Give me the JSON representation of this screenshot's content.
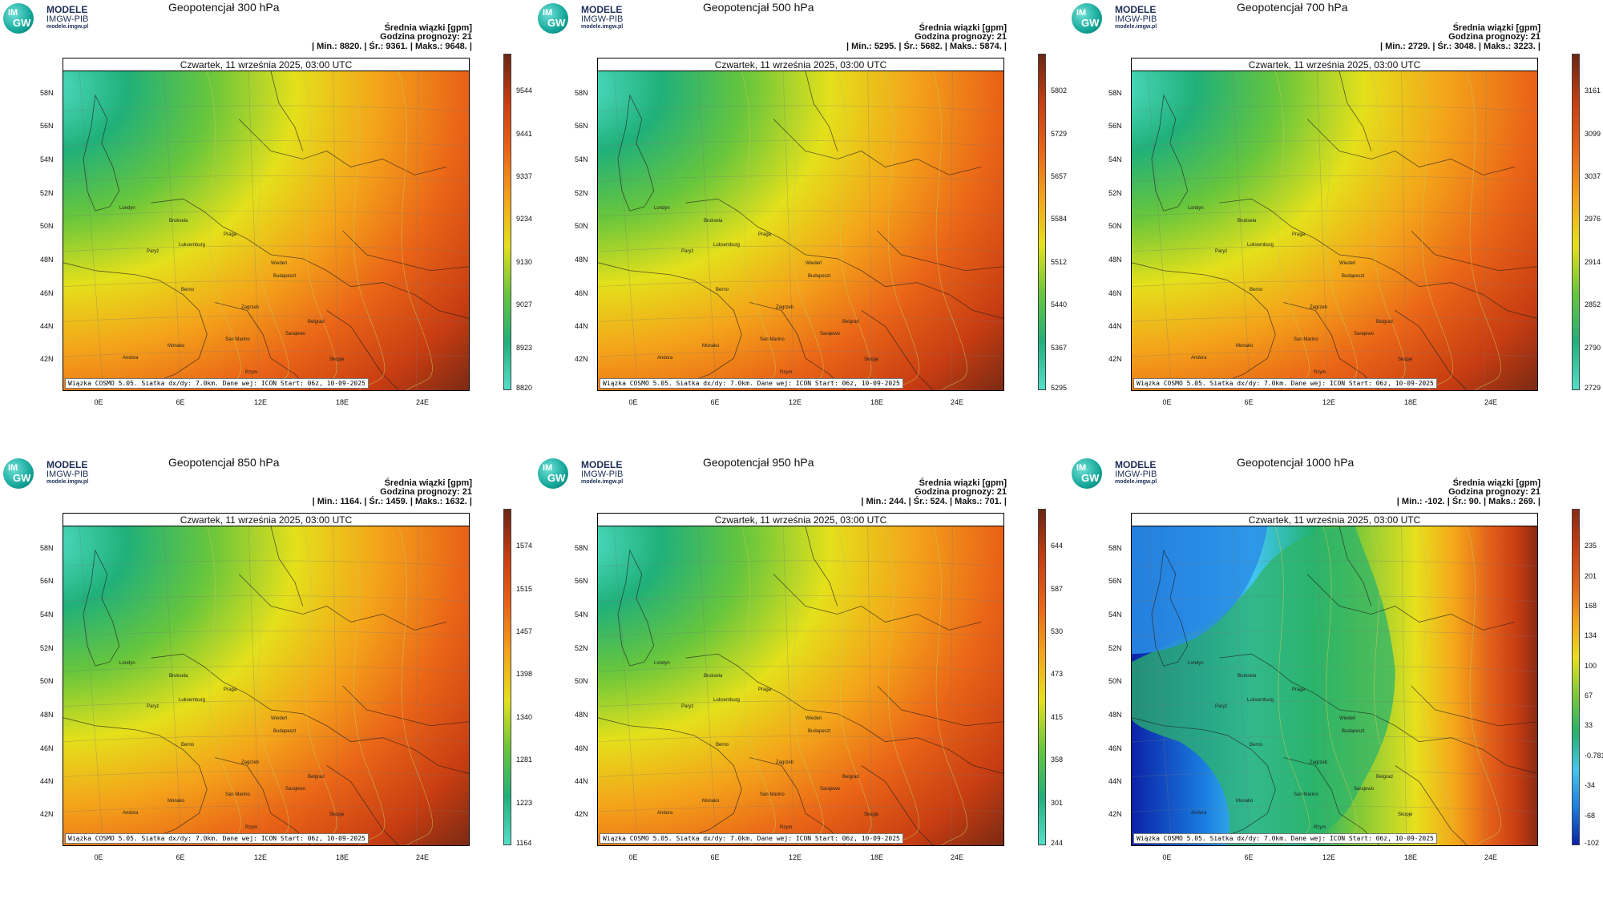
{
  "header": {
    "logo_line1": "MODELE",
    "logo_line2": "IMGW-PIB",
    "logo_line3": "modele.imgw.pl",
    "logo_im": "IM",
    "logo_gw": "GW",
    "units": "Średnia wiązki [gpm]",
    "forecast_hour": "Godzina prognozy: 21",
    "date": "Czwartek, 11 września 2025, 03:00 UTC",
    "footer": "Wiązka COSMO 5.05. Siatka dx/dy: 7.0km. Dane wej: ICON Start: 06z, 10-09-2025"
  },
  "axes": {
    "lat_ticks": [
      "58N",
      "56N",
      "54N",
      "52N",
      "50N",
      "48N",
      "46N",
      "44N",
      "42N"
    ],
    "lon_ticks": [
      "0E",
      "6E",
      "12E",
      "18E",
      "24E"
    ]
  },
  "cities": [
    "Londyn",
    "Paryż",
    "Bruksela",
    "Luksemburg",
    "Praga",
    "Wiedeń",
    "Budapeszt",
    "Berno",
    "Zagrzeb",
    "Belgrad",
    "San Marino",
    "Sarajewo",
    "Monako",
    "Andora",
    "Skopje",
    "Rzym"
  ],
  "panels": [
    {
      "title": "Geopotencjał 300 hPa",
      "stats": "| Min.:    8820. | Śr.:    9361. | Maks.:    9648. |",
      "colorbar_ticks": [
        "9544",
        "9441",
        "9337",
        "9234",
        "9130",
        "9027",
        "8923",
        "8820"
      ],
      "colors": [
        "#53e0c9",
        "#20b07a",
        "#68c63c",
        "#e4e01b",
        "#f4a41a",
        "#ea6417",
        "#c83d12",
        "#6b2614"
      ],
      "trough": 0.0,
      "gradient": "east-west"
    },
    {
      "title": "Geopotencjał 500 hPa",
      "stats": "| Min.:    5295. | Śr.:    5682. | Maks.:    5874. |",
      "colorbar_ticks": [
        "5802",
        "5729",
        "5657",
        "5584",
        "5512",
        "5440",
        "5367",
        "5295"
      ],
      "colors": [
        "#53e0c9",
        "#20b07a",
        "#68c63c",
        "#e4e01b",
        "#f4a41a",
        "#ea6417",
        "#c83d12",
        "#6b2614"
      ],
      "trough": 0.0,
      "gradient": "east-west"
    },
    {
      "title": "Geopotencjał 700 hPa",
      "stats": "| Min.:    2729. | Śr.:    3048. | Maks.:    3223. |",
      "colorbar_ticks": [
        "3161",
        "3099",
        "3037",
        "2976",
        "2914",
        "2852",
        "2790",
        "2729"
      ],
      "colors": [
        "#53e0c9",
        "#20b07a",
        "#68c63c",
        "#e4e01b",
        "#f4a41a",
        "#ea6417",
        "#c83d12",
        "#6b2614"
      ],
      "trough": 0.0,
      "gradient": "east-west"
    },
    {
      "title": "Geopotencjał 850 hPa",
      "stats": "| Min.:    1164. | Śr.:    1459. | Maks.:    1632. |",
      "colorbar_ticks": [
        "1574",
        "1515",
        "1457",
        "1398",
        "1340",
        "1281",
        "1223",
        "1164"
      ],
      "colors": [
        "#53e0c9",
        "#20b07a",
        "#68c63c",
        "#e4e01b",
        "#f4a41a",
        "#ea6417",
        "#c83d12",
        "#6b2614"
      ],
      "trough": 0.0,
      "gradient": "east-west"
    },
    {
      "title": "Geopotencjał 950 hPa",
      "stats": "| Min.:     244. | Śr.:     524. | Maks.:     701. |",
      "colorbar_ticks": [
        "644",
        "587",
        "530",
        "473",
        "415",
        "358",
        "301",
        "244"
      ],
      "colors": [
        "#53e0c9",
        "#20b07a",
        "#68c63c",
        "#e4e01b",
        "#f4a41a",
        "#ea6417",
        "#c83d12",
        "#6b2614"
      ],
      "trough": 0.0,
      "gradient": "east-west"
    },
    {
      "title": "Geopotencjał 1000 hPa",
      "stats": "| Min.:    -102. | Śr.:      90. | Maks.:     269. |",
      "colorbar_ticks": [
        "235",
        "201",
        "168",
        "134",
        "100",
        "67",
        "33",
        "-0.781",
        "-34",
        "-68",
        "-102"
      ],
      "colors": [
        "#0b22a8",
        "#1a7ee0",
        "#43c6f0",
        "#22b36e",
        "#7cc83a",
        "#e7e01d",
        "#f4a41a",
        "#e5611a",
        "#c83d12",
        "#8a2a14"
      ],
      "trough": 1.0,
      "gradient": "trough"
    }
  ]
}
